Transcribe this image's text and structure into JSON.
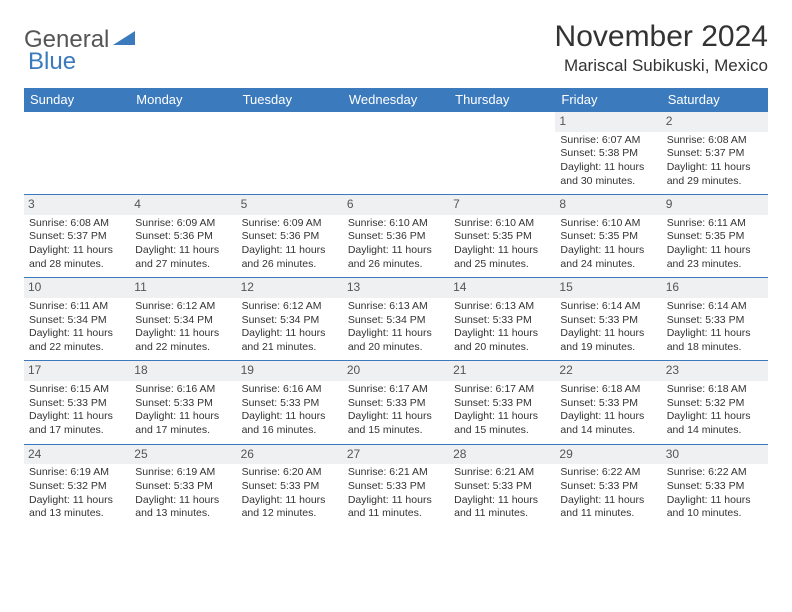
{
  "brand": {
    "general": "General",
    "blue": "Blue"
  },
  "title": "November 2024",
  "location": "Mariscal Subikuski, Mexico",
  "colors": {
    "header_bg": "#3a7abd",
    "header_text": "#ffffff",
    "daynum_bg": "#eef0f2",
    "body_text": "#333333",
    "page_bg": "#ffffff",
    "row_divider": "#3a7abd"
  },
  "typography": {
    "title_fontsize": 30,
    "location_fontsize": 17,
    "dayheader_fontsize": 13,
    "cell_fontsize": 10.5
  },
  "day_headers": [
    "Sunday",
    "Monday",
    "Tuesday",
    "Wednesday",
    "Thursday",
    "Friday",
    "Saturday"
  ],
  "weeks": [
    [
      {
        "n": "",
        "sr": "",
        "ss": "",
        "dl": ""
      },
      {
        "n": "",
        "sr": "",
        "ss": "",
        "dl": ""
      },
      {
        "n": "",
        "sr": "",
        "ss": "",
        "dl": ""
      },
      {
        "n": "",
        "sr": "",
        "ss": "",
        "dl": ""
      },
      {
        "n": "",
        "sr": "",
        "ss": "",
        "dl": ""
      },
      {
        "n": "1",
        "sr": "Sunrise: 6:07 AM",
        "ss": "Sunset: 5:38 PM",
        "dl": "Daylight: 11 hours and 30 minutes."
      },
      {
        "n": "2",
        "sr": "Sunrise: 6:08 AM",
        "ss": "Sunset: 5:37 PM",
        "dl": "Daylight: 11 hours and 29 minutes."
      }
    ],
    [
      {
        "n": "3",
        "sr": "Sunrise: 6:08 AM",
        "ss": "Sunset: 5:37 PM",
        "dl": "Daylight: 11 hours and 28 minutes."
      },
      {
        "n": "4",
        "sr": "Sunrise: 6:09 AM",
        "ss": "Sunset: 5:36 PM",
        "dl": "Daylight: 11 hours and 27 minutes."
      },
      {
        "n": "5",
        "sr": "Sunrise: 6:09 AM",
        "ss": "Sunset: 5:36 PM",
        "dl": "Daylight: 11 hours and 26 minutes."
      },
      {
        "n": "6",
        "sr": "Sunrise: 6:10 AM",
        "ss": "Sunset: 5:36 PM",
        "dl": "Daylight: 11 hours and 26 minutes."
      },
      {
        "n": "7",
        "sr": "Sunrise: 6:10 AM",
        "ss": "Sunset: 5:35 PM",
        "dl": "Daylight: 11 hours and 25 minutes."
      },
      {
        "n": "8",
        "sr": "Sunrise: 6:10 AM",
        "ss": "Sunset: 5:35 PM",
        "dl": "Daylight: 11 hours and 24 minutes."
      },
      {
        "n": "9",
        "sr": "Sunrise: 6:11 AM",
        "ss": "Sunset: 5:35 PM",
        "dl": "Daylight: 11 hours and 23 minutes."
      }
    ],
    [
      {
        "n": "10",
        "sr": "Sunrise: 6:11 AM",
        "ss": "Sunset: 5:34 PM",
        "dl": "Daylight: 11 hours and 22 minutes."
      },
      {
        "n": "11",
        "sr": "Sunrise: 6:12 AM",
        "ss": "Sunset: 5:34 PM",
        "dl": "Daylight: 11 hours and 22 minutes."
      },
      {
        "n": "12",
        "sr": "Sunrise: 6:12 AM",
        "ss": "Sunset: 5:34 PM",
        "dl": "Daylight: 11 hours and 21 minutes."
      },
      {
        "n": "13",
        "sr": "Sunrise: 6:13 AM",
        "ss": "Sunset: 5:34 PM",
        "dl": "Daylight: 11 hours and 20 minutes."
      },
      {
        "n": "14",
        "sr": "Sunrise: 6:13 AM",
        "ss": "Sunset: 5:33 PM",
        "dl": "Daylight: 11 hours and 20 minutes."
      },
      {
        "n": "15",
        "sr": "Sunrise: 6:14 AM",
        "ss": "Sunset: 5:33 PM",
        "dl": "Daylight: 11 hours and 19 minutes."
      },
      {
        "n": "16",
        "sr": "Sunrise: 6:14 AM",
        "ss": "Sunset: 5:33 PM",
        "dl": "Daylight: 11 hours and 18 minutes."
      }
    ],
    [
      {
        "n": "17",
        "sr": "Sunrise: 6:15 AM",
        "ss": "Sunset: 5:33 PM",
        "dl": "Daylight: 11 hours and 17 minutes."
      },
      {
        "n": "18",
        "sr": "Sunrise: 6:16 AM",
        "ss": "Sunset: 5:33 PM",
        "dl": "Daylight: 11 hours and 17 minutes."
      },
      {
        "n": "19",
        "sr": "Sunrise: 6:16 AM",
        "ss": "Sunset: 5:33 PM",
        "dl": "Daylight: 11 hours and 16 minutes."
      },
      {
        "n": "20",
        "sr": "Sunrise: 6:17 AM",
        "ss": "Sunset: 5:33 PM",
        "dl": "Daylight: 11 hours and 15 minutes."
      },
      {
        "n": "21",
        "sr": "Sunrise: 6:17 AM",
        "ss": "Sunset: 5:33 PM",
        "dl": "Daylight: 11 hours and 15 minutes."
      },
      {
        "n": "22",
        "sr": "Sunrise: 6:18 AM",
        "ss": "Sunset: 5:33 PM",
        "dl": "Daylight: 11 hours and 14 minutes."
      },
      {
        "n": "23",
        "sr": "Sunrise: 6:18 AM",
        "ss": "Sunset: 5:32 PM",
        "dl": "Daylight: 11 hours and 14 minutes."
      }
    ],
    [
      {
        "n": "24",
        "sr": "Sunrise: 6:19 AM",
        "ss": "Sunset: 5:32 PM",
        "dl": "Daylight: 11 hours and 13 minutes."
      },
      {
        "n": "25",
        "sr": "Sunrise: 6:19 AM",
        "ss": "Sunset: 5:33 PM",
        "dl": "Daylight: 11 hours and 13 minutes."
      },
      {
        "n": "26",
        "sr": "Sunrise: 6:20 AM",
        "ss": "Sunset: 5:33 PM",
        "dl": "Daylight: 11 hours and 12 minutes."
      },
      {
        "n": "27",
        "sr": "Sunrise: 6:21 AM",
        "ss": "Sunset: 5:33 PM",
        "dl": "Daylight: 11 hours and 11 minutes."
      },
      {
        "n": "28",
        "sr": "Sunrise: 6:21 AM",
        "ss": "Sunset: 5:33 PM",
        "dl": "Daylight: 11 hours and 11 minutes."
      },
      {
        "n": "29",
        "sr": "Sunrise: 6:22 AM",
        "ss": "Sunset: 5:33 PM",
        "dl": "Daylight: 11 hours and 11 minutes."
      },
      {
        "n": "30",
        "sr": "Sunrise: 6:22 AM",
        "ss": "Sunset: 5:33 PM",
        "dl": "Daylight: 11 hours and 10 minutes."
      }
    ]
  ]
}
